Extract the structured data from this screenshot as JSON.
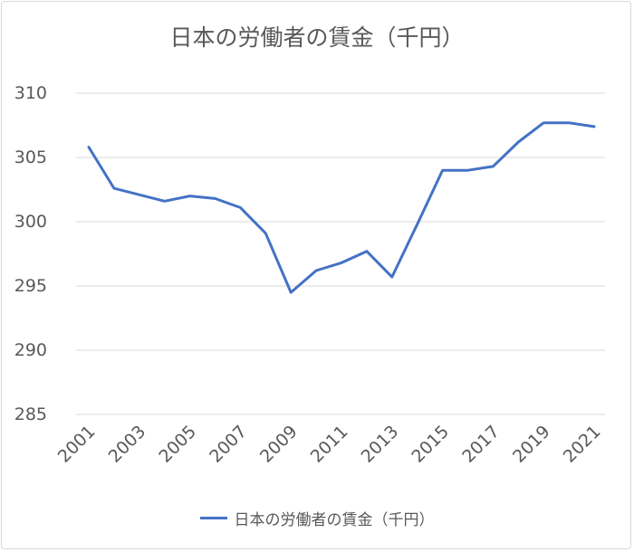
{
  "chart_data": {
    "type": "line",
    "title": "日本の労働者の賃金（千円）",
    "xlabel": "",
    "ylabel": "",
    "ylim": [
      285,
      310
    ],
    "yticks": [
      "310",
      "305",
      "300",
      "295",
      "290",
      "285"
    ],
    "x": [
      2001,
      2002,
      2003,
      2004,
      2005,
      2006,
      2007,
      2008,
      2009,
      2010,
      2011,
      2012,
      2013,
      2014,
      2015,
      2016,
      2017,
      2018,
      2019,
      2020,
      2021
    ],
    "xtick_labels": [
      "2001",
      "2003",
      "2005",
      "2007",
      "2009",
      "2011",
      "2013",
      "2015",
      "2017",
      "2019",
      "2021"
    ],
    "series": [
      {
        "name": "日本の労働者の賃金（千円）",
        "color": "#4472c4",
        "values": [
          305.8,
          302.6,
          302.1,
          301.6,
          302.0,
          301.8,
          301.1,
          299.1,
          294.5,
          296.2,
          296.8,
          297.7,
          295.7,
          299.8,
          304.0,
          304.0,
          304.3,
          306.2,
          307.7,
          307.7,
          307.4
        ]
      }
    ],
    "grid": true,
    "legend_position": "bottom"
  }
}
